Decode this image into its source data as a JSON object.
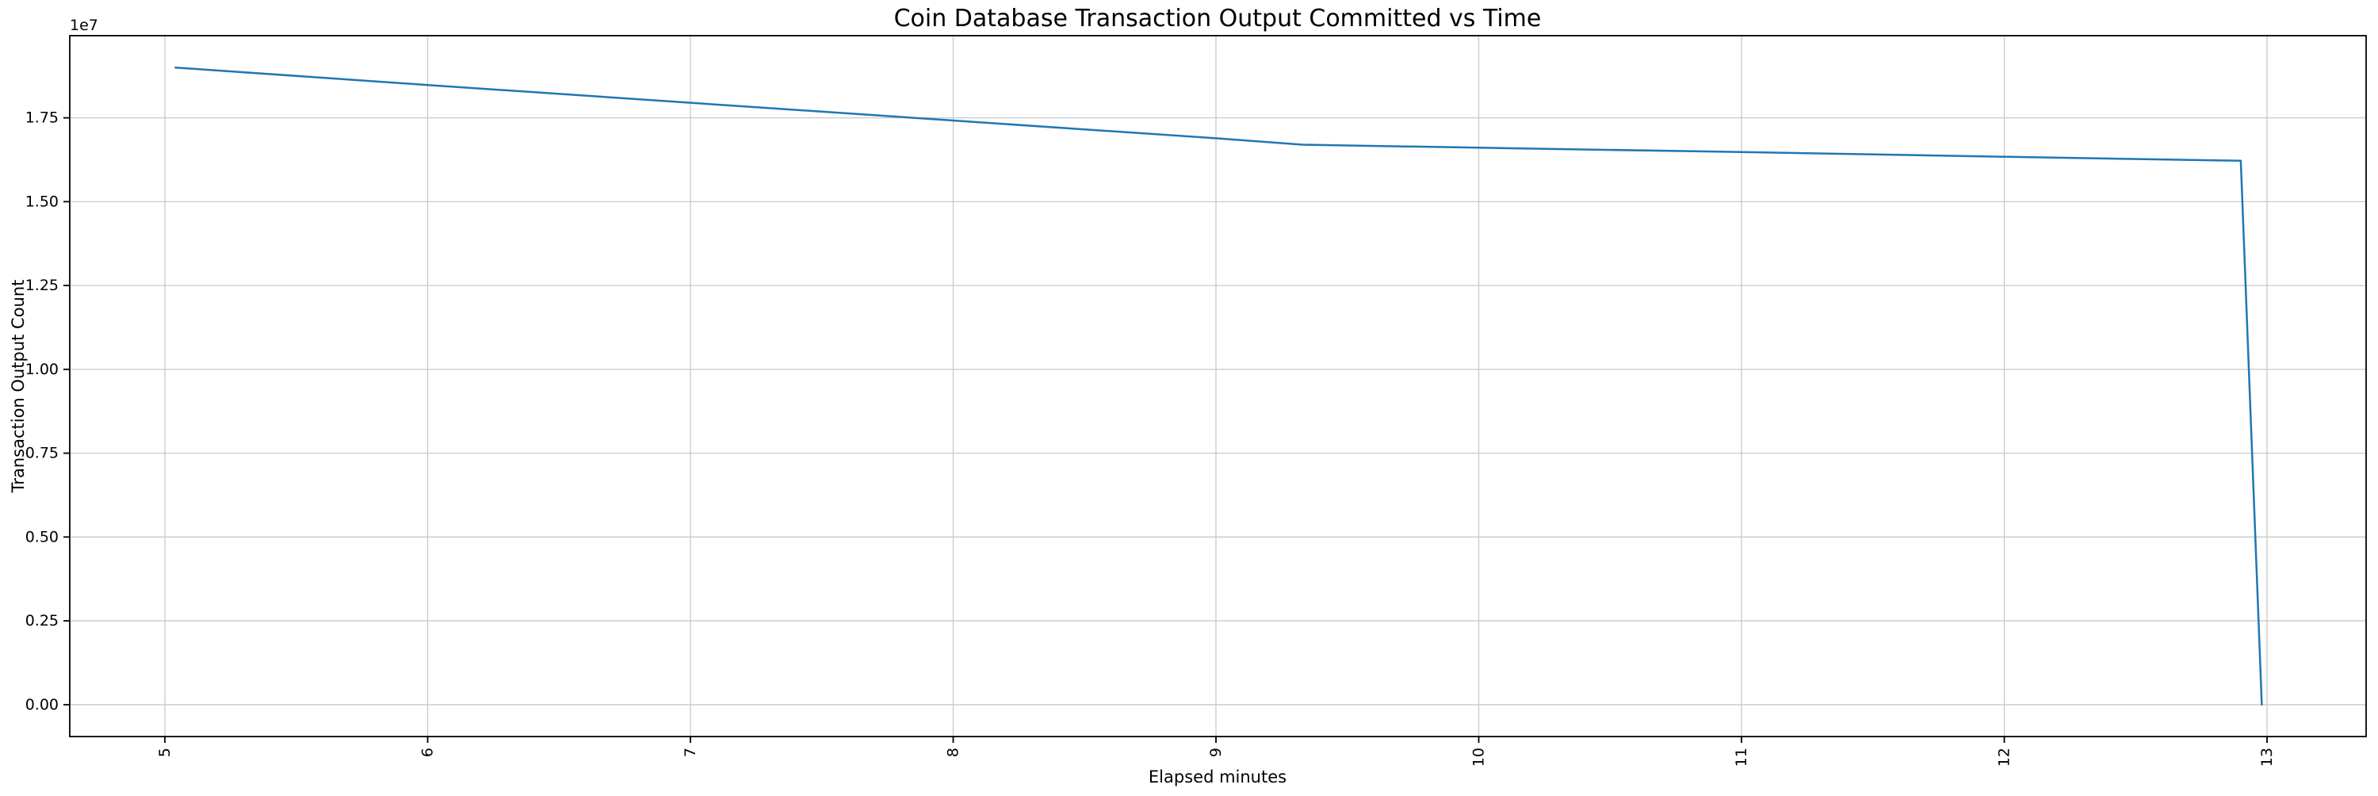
{
  "figure": {
    "background": "#ffffff"
  },
  "chart_data": {
    "type": "line",
    "title": "Coin Database Transaction Output Committed vs Time",
    "xlabel": "Elapsed minutes",
    "ylabel": "Transaction Output Count",
    "y_offset_text": "1e7",
    "legend": "none",
    "grid": true,
    "grid_color": "#c9c9c9",
    "line_color": "#1f77b4",
    "spine_color": "#000000",
    "xlim": [
      4.638,
      13.377
    ],
    "ylim": [
      -950000,
      19950000
    ],
    "x_ticks": [
      5,
      6,
      7,
      8,
      9,
      10,
      11,
      12,
      13
    ],
    "x_tick_labels": [
      "5",
      "6",
      "7",
      "8",
      "9",
      "10",
      "11",
      "12",
      "13"
    ],
    "x_tick_rotation": 90,
    "y_ticks": [
      0,
      2500000,
      5000000,
      7500000,
      10000000,
      12500000,
      15000000,
      17500000
    ],
    "y_tick_labels": [
      "0.00",
      "0.25",
      "0.50",
      "0.75",
      "1.00",
      "1.25",
      "1.50",
      "1.75"
    ],
    "series": [
      {
        "name": "transaction-output-count",
        "points": [
          [
            5.04,
            19000000
          ],
          [
            6.0,
            18480000
          ],
          [
            7.0,
            17950000
          ],
          [
            8.0,
            17420000
          ],
          [
            9.0,
            16890000
          ],
          [
            9.33,
            16700000
          ],
          [
            10.0,
            16610000
          ],
          [
            11.0,
            16480000
          ],
          [
            12.0,
            16340000
          ],
          [
            12.9,
            16220000
          ],
          [
            12.98,
            0
          ]
        ]
      }
    ]
  }
}
